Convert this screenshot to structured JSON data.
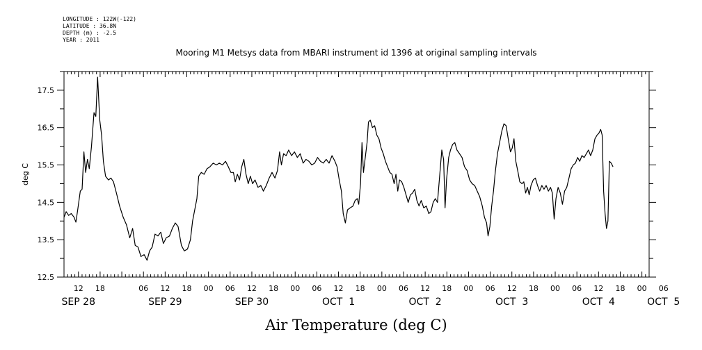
{
  "meta": {
    "longitude": "LONGITUDE : 122W(-122)",
    "latitude": "LATITUDE : 36.8N",
    "depth": "DEPTH (m) : -2.5",
    "year": "YEAR : 2011"
  },
  "chart_data": {
    "type": "line",
    "title": "Mooring M1 Metsys data from MBARI instrument id 1396 at original sampling intervals",
    "ylabel": "deg C",
    "xlabel": "Air Temperature (deg C)",
    "ylim": [
      12.5,
      18.0
    ],
    "yticks": [
      12.5,
      13.5,
      14.5,
      15.5,
      16.5,
      17.5
    ],
    "xlim_hours": [
      8,
      170
    ],
    "hour_ticks": [
      {
        "h": 12,
        "label": "12"
      },
      {
        "h": 18,
        "label": "18"
      },
      {
        "h": 30,
        "label": "06"
      },
      {
        "h": 36,
        "label": "12"
      },
      {
        "h": 42,
        "label": "18"
      },
      {
        "h": 48,
        "label": "00"
      },
      {
        "h": 54,
        "label": "06"
      },
      {
        "h": 60,
        "label": "12"
      },
      {
        "h": 66,
        "label": "18"
      },
      {
        "h": 72,
        "label": "00"
      },
      {
        "h": 78,
        "label": "06"
      },
      {
        "h": 84,
        "label": "12"
      },
      {
        "h": 90,
        "label": "18"
      },
      {
        "h": 96,
        "label": "00"
      },
      {
        "h": 102,
        "label": "06"
      },
      {
        "h": 108,
        "label": "12"
      },
      {
        "h": 114,
        "label": "18"
      },
      {
        "h": 120,
        "label": "00"
      },
      {
        "h": 126,
        "label": "06"
      },
      {
        "h": 132,
        "label": "12"
      },
      {
        "h": 138,
        "label": "18"
      },
      {
        "h": 144,
        "label": "00"
      },
      {
        "h": 150,
        "label": "06"
      },
      {
        "h": 156,
        "label": "12"
      },
      {
        "h": 162,
        "label": "18"
      },
      {
        "h": 168,
        "label": "00"
      },
      {
        "h": 174,
        "label": "06"
      }
    ],
    "day_labels": [
      {
        "h": 12,
        "label": "SEP 28"
      },
      {
        "h": 36,
        "label": "SEP 29"
      },
      {
        "h": 60,
        "label": "SEP 30"
      },
      {
        "h": 84,
        "label": "OCT  1"
      },
      {
        "h": 108,
        "label": "OCT  2"
      },
      {
        "h": 132,
        "label": "OCT  3"
      },
      {
        "h": 156,
        "label": "OCT  4"
      },
      {
        "h": 174,
        "label": "OCT  5"
      }
    ],
    "grid": false,
    "series": [
      {
        "color": "#000000",
        "points": [
          [
            8.0,
            14.1
          ],
          [
            8.6,
            14.25
          ],
          [
            9.3,
            14.15
          ],
          [
            10.0,
            14.2
          ],
          [
            10.8,
            14.1
          ],
          [
            11.3,
            13.97
          ],
          [
            11.8,
            14.3
          ],
          [
            12.5,
            14.8
          ],
          [
            13.0,
            14.85
          ],
          [
            13.5,
            15.85
          ],
          [
            14.0,
            15.3
          ],
          [
            14.5,
            15.65
          ],
          [
            15.0,
            15.4
          ],
          [
            15.6,
            16.0
          ],
          [
            16.3,
            16.9
          ],
          [
            16.8,
            16.8
          ],
          [
            17.3,
            17.85
          ],
          [
            17.9,
            16.7
          ],
          [
            18.4,
            16.3
          ],
          [
            18.9,
            15.6
          ],
          [
            19.5,
            15.2
          ],
          [
            20.3,
            15.1
          ],
          [
            21.0,
            15.15
          ],
          [
            21.7,
            15.05
          ],
          [
            22.5,
            14.75
          ],
          [
            23.4,
            14.4
          ],
          [
            24.4,
            14.1
          ],
          [
            25.3,
            13.9
          ],
          [
            26.2,
            13.55
          ],
          [
            27.0,
            13.8
          ],
          [
            27.7,
            13.35
          ],
          [
            28.5,
            13.3
          ],
          [
            29.3,
            13.05
          ],
          [
            30.2,
            13.1
          ],
          [
            31.0,
            12.95
          ],
          [
            31.7,
            13.2
          ],
          [
            32.4,
            13.3
          ],
          [
            33.2,
            13.65
          ],
          [
            34.0,
            13.6
          ],
          [
            34.8,
            13.7
          ],
          [
            35.5,
            13.4
          ],
          [
            36.3,
            13.55
          ],
          [
            37.2,
            13.6
          ],
          [
            38.0,
            13.8
          ],
          [
            38.8,
            13.95
          ],
          [
            39.6,
            13.85
          ],
          [
            40.5,
            13.35
          ],
          [
            41.3,
            13.2
          ],
          [
            42.2,
            13.25
          ],
          [
            43.0,
            13.5
          ],
          [
            43.6,
            14.0
          ],
          [
            44.2,
            14.3
          ],
          [
            44.8,
            14.6
          ],
          [
            45.3,
            15.2
          ],
          [
            46.0,
            15.3
          ],
          [
            46.8,
            15.25
          ],
          [
            47.6,
            15.4
          ],
          [
            48.4,
            15.45
          ],
          [
            49.3,
            15.55
          ],
          [
            50.2,
            15.5
          ],
          [
            51.0,
            15.55
          ],
          [
            51.9,
            15.5
          ],
          [
            52.7,
            15.6
          ],
          [
            53.5,
            15.45
          ],
          [
            54.2,
            15.3
          ],
          [
            54.9,
            15.3
          ],
          [
            55.4,
            15.05
          ],
          [
            56.0,
            15.25
          ],
          [
            56.6,
            15.1
          ],
          [
            57.2,
            15.45
          ],
          [
            57.8,
            15.65
          ],
          [
            58.4,
            15.25
          ],
          [
            59.0,
            15.0
          ],
          [
            59.6,
            15.2
          ],
          [
            60.2,
            15.0
          ],
          [
            60.9,
            15.1
          ],
          [
            61.7,
            14.9
          ],
          [
            62.5,
            14.95
          ],
          [
            63.2,
            14.8
          ],
          [
            64.0,
            14.95
          ],
          [
            64.8,
            15.15
          ],
          [
            65.6,
            15.3
          ],
          [
            66.4,
            15.15
          ],
          [
            67.1,
            15.35
          ],
          [
            67.7,
            15.85
          ],
          [
            68.2,
            15.5
          ],
          [
            68.8,
            15.8
          ],
          [
            69.5,
            15.75
          ],
          [
            70.2,
            15.9
          ],
          [
            71.0,
            15.75
          ],
          [
            71.8,
            15.85
          ],
          [
            72.6,
            15.7
          ],
          [
            73.4,
            15.8
          ],
          [
            74.2,
            15.55
          ],
          [
            75.0,
            15.65
          ],
          [
            75.8,
            15.6
          ],
          [
            76.6,
            15.5
          ],
          [
            77.4,
            15.55
          ],
          [
            78.2,
            15.7
          ],
          [
            79.0,
            15.6
          ],
          [
            79.8,
            15.55
          ],
          [
            80.6,
            15.65
          ],
          [
            81.4,
            15.55
          ],
          [
            82.2,
            15.75
          ],
          [
            83.0,
            15.6
          ],
          [
            83.6,
            15.45
          ],
          [
            84.2,
            15.1
          ],
          [
            84.8,
            14.8
          ],
          [
            85.3,
            14.2
          ],
          [
            85.9,
            13.95
          ],
          [
            86.5,
            14.3
          ],
          [
            87.2,
            14.35
          ],
          [
            88.0,
            14.4
          ],
          [
            88.6,
            14.55
          ],
          [
            89.2,
            14.6
          ],
          [
            89.6,
            14.45
          ],
          [
            90.1,
            15.0
          ],
          [
            90.5,
            16.1
          ],
          [
            90.9,
            15.3
          ],
          [
            91.4,
            15.7
          ],
          [
            91.9,
            16.1
          ],
          [
            92.3,
            16.65
          ],
          [
            92.8,
            16.7
          ],
          [
            93.4,
            16.5
          ],
          [
            94.0,
            16.55
          ],
          [
            94.6,
            16.3
          ],
          [
            95.2,
            16.2
          ],
          [
            95.8,
            15.95
          ],
          [
            96.4,
            15.8
          ],
          [
            97.0,
            15.6
          ],
          [
            97.6,
            15.45
          ],
          [
            98.2,
            15.3
          ],
          [
            98.8,
            15.25
          ],
          [
            99.4,
            15.0
          ],
          [
            99.9,
            15.25
          ],
          [
            100.4,
            14.8
          ],
          [
            100.9,
            15.1
          ],
          [
            101.5,
            15.05
          ],
          [
            102.1,
            14.9
          ],
          [
            102.7,
            14.7
          ],
          [
            103.3,
            14.5
          ],
          [
            103.9,
            14.7
          ],
          [
            104.5,
            14.75
          ],
          [
            105.1,
            14.85
          ],
          [
            105.7,
            14.55
          ],
          [
            106.3,
            14.4
          ],
          [
            106.9,
            14.55
          ],
          [
            107.6,
            14.35
          ],
          [
            108.3,
            14.4
          ],
          [
            109.0,
            14.2
          ],
          [
            109.6,
            14.25
          ],
          [
            110.2,
            14.5
          ],
          [
            110.8,
            14.6
          ],
          [
            111.4,
            14.5
          ],
          [
            112.0,
            15.2
          ],
          [
            112.6,
            15.9
          ],
          [
            113.1,
            15.65
          ],
          [
            113.5,
            14.35
          ],
          [
            113.9,
            15.1
          ],
          [
            114.5,
            15.7
          ],
          [
            115.0,
            15.9
          ],
          [
            115.6,
            16.05
          ],
          [
            116.2,
            16.1
          ],
          [
            116.8,
            15.9
          ],
          [
            117.5,
            15.8
          ],
          [
            118.2,
            15.7
          ],
          [
            118.9,
            15.45
          ],
          [
            119.6,
            15.35
          ],
          [
            120.3,
            15.1
          ],
          [
            121.0,
            15.0
          ],
          [
            121.7,
            14.95
          ],
          [
            122.4,
            14.8
          ],
          [
            123.1,
            14.65
          ],
          [
            123.8,
            14.4
          ],
          [
            124.4,
            14.1
          ],
          [
            125.0,
            13.95
          ],
          [
            125.4,
            13.6
          ],
          [
            125.9,
            13.85
          ],
          [
            126.4,
            14.4
          ],
          [
            126.9,
            14.8
          ],
          [
            127.4,
            15.3
          ],
          [
            128.0,
            15.8
          ],
          [
            128.6,
            16.1
          ],
          [
            129.2,
            16.4
          ],
          [
            129.8,
            16.6
          ],
          [
            130.4,
            16.55
          ],
          [
            131.0,
            16.2
          ],
          [
            131.6,
            15.85
          ],
          [
            132.1,
            15.95
          ],
          [
            132.6,
            16.2
          ],
          [
            133.1,
            15.6
          ],
          [
            133.7,
            15.3
          ],
          [
            134.2,
            15.05
          ],
          [
            134.8,
            15.0
          ],
          [
            135.3,
            15.05
          ],
          [
            135.8,
            14.75
          ],
          [
            136.3,
            14.9
          ],
          [
            136.8,
            14.7
          ],
          [
            137.3,
            14.95
          ],
          [
            137.9,
            15.1
          ],
          [
            138.5,
            15.15
          ],
          [
            139.1,
            14.95
          ],
          [
            139.7,
            14.8
          ],
          [
            140.3,
            14.95
          ],
          [
            140.9,
            14.85
          ],
          [
            141.5,
            14.95
          ],
          [
            142.1,
            14.8
          ],
          [
            142.7,
            14.9
          ],
          [
            143.2,
            14.75
          ],
          [
            143.7,
            14.05
          ],
          [
            144.2,
            14.6
          ],
          [
            144.8,
            14.9
          ],
          [
            145.4,
            14.75
          ],
          [
            146.0,
            14.45
          ],
          [
            146.6,
            14.8
          ],
          [
            147.2,
            14.9
          ],
          [
            147.8,
            15.15
          ],
          [
            148.4,
            15.4
          ],
          [
            149.0,
            15.5
          ],
          [
            149.6,
            15.55
          ],
          [
            150.2,
            15.7
          ],
          [
            150.8,
            15.6
          ],
          [
            151.4,
            15.75
          ],
          [
            152.0,
            15.7
          ],
          [
            152.6,
            15.8
          ],
          [
            153.2,
            15.9
          ],
          [
            153.8,
            15.75
          ],
          [
            154.4,
            15.9
          ],
          [
            155.0,
            16.2
          ],
          [
            155.6,
            16.3
          ],
          [
            156.1,
            16.35
          ],
          [
            156.6,
            16.45
          ],
          [
            157.0,
            16.3
          ],
          [
            157.4,
            14.8
          ],
          [
            157.8,
            14.2
          ],
          [
            158.2,
            13.8
          ],
          [
            158.6,
            14.0
          ],
          [
            159.0,
            15.6
          ],
          [
            159.5,
            15.55
          ],
          [
            160.0,
            15.45
          ]
        ]
      }
    ]
  }
}
